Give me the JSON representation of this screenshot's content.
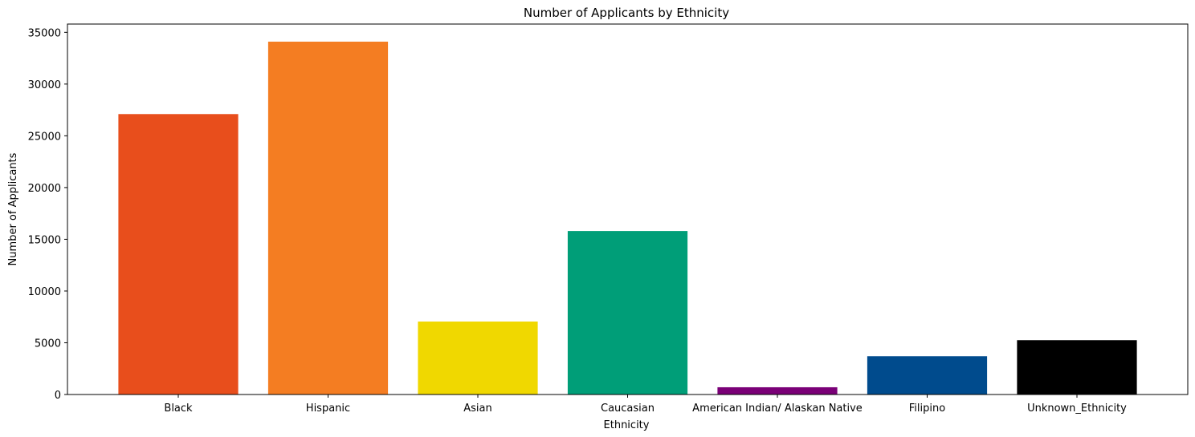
{
  "chart_data": {
    "type": "bar",
    "title": "Number of Applicants by Ethnicity",
    "xlabel": "Ethnicity",
    "ylabel": "Number of Applicants",
    "categories": [
      "Black",
      "Hispanic",
      "Asian",
      "Caucasian",
      "American Indian/ Alaskan Native",
      "Filipino",
      "Unknown_Ethnicity"
    ],
    "values": [
      27100,
      34100,
      7050,
      15800,
      700,
      3700,
      5250
    ],
    "colors": [
      "#e84e1c",
      "#f47d22",
      "#f0d800",
      "#009e78",
      "#7a0077",
      "#004b8d",
      "#000000"
    ],
    "ylim": [
      0,
      35800
    ],
    "yticks": [
      0,
      5000,
      10000,
      15000,
      20000,
      25000,
      30000,
      35000
    ],
    "grid": false,
    "legend": "none"
  }
}
